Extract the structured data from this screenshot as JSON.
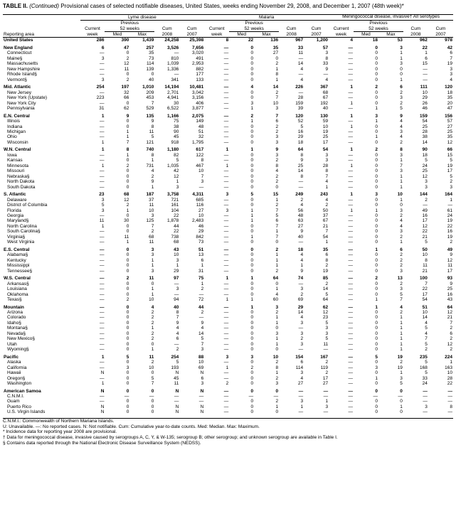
{
  "title_prefix": "TABLE II. ",
  "title_italic": "(Continued)",
  "title_rest": " Provisional cases of selected notifiable diseases, United States, weeks ending November 29, 2008, and December 1, 2007 (48th week)*",
  "groups": [
    {
      "label": "Lyme disease"
    },
    {
      "label": "Malaria"
    },
    {
      "label": "Meningococcal disease, invasive†\nAll serotypes"
    }
  ],
  "subheaders": {
    "previous": "Previous",
    "weeks": "52 weeks",
    "current": "Current",
    "week": "week",
    "med": "Med",
    "max": "Max",
    "cum": "Cum",
    "y2008": "2008",
    "y2007": "2007",
    "area": "Reporting area"
  },
  "sections": [
    {
      "header": [
        "United States",
        "286",
        "390",
        "1,439",
        "24,258",
        "25,398",
        "8",
        "22",
        "136",
        "967",
        "1,200",
        "4",
        "18",
        "53",
        "962",
        "978"
      ],
      "rows": []
    },
    {
      "header": [
        "New England",
        "6",
        "47",
        "257",
        "3,526",
        "7,656",
        "—",
        "0",
        "35",
        "33",
        "57",
        "—",
        "0",
        "3",
        "22",
        "42"
      ],
      "rows": [
        [
          "Connecticut",
          "—",
          "0",
          "35",
          "—",
          "3,020",
          "—",
          "0",
          "27",
          "11",
          "3",
          "—",
          "0",
          "1",
          "1",
          "6"
        ],
        [
          "Maine§",
          "3",
          "2",
          "73",
          "810",
          "491",
          "—",
          "0",
          "0",
          "—",
          "8",
          "—",
          "0",
          "1",
          "6",
          "7"
        ],
        [
          "Massachusetts",
          "—",
          "12",
          "114",
          "1,039",
          "2,953",
          "—",
          "0",
          "2",
          "14",
          "33",
          "—",
          "0",
          "3",
          "15",
          "19"
        ],
        [
          "New Hampshire",
          "—",
          "11",
          "139",
          "1,336",
          "882",
          "—",
          "0",
          "1",
          "4",
          "9",
          "—",
          "0",
          "0",
          "—",
          "3"
        ],
        [
          "Rhode Island§",
          "—",
          "0",
          "0",
          "—",
          "177",
          "—",
          "0",
          "8",
          "—",
          "—",
          "—",
          "0",
          "0",
          "—",
          "3"
        ],
        [
          "Vermont§",
          "3",
          "2",
          "40",
          "341",
          "133",
          "—",
          "0",
          "1",
          "4",
          "4",
          "—",
          "0",
          "1",
          "—",
          "4"
        ]
      ]
    },
    {
      "header": [
        "Mid. Atlantic",
        "254",
        "197",
        "1,010",
        "14,194",
        "10,481",
        "—",
        "4",
        "14",
        "226",
        "367",
        "1",
        "2",
        "6",
        "111",
        "120"
      ],
      "rows": [
        [
          "New Jersey",
          "—",
          "32",
          "209",
          "2,701",
          "3,042",
          "—",
          "0",
          "2",
          "—",
          "68",
          "—",
          "0",
          "2",
          "10",
          "18"
        ],
        [
          "New York (Upstate)",
          "223",
          "66",
          "453",
          "4,941",
          "3,156",
          "—",
          "0",
          "7",
          "28",
          "67",
          "—",
          "0",
          "3",
          "29",
          "35"
        ],
        [
          "New York City",
          "—",
          "0",
          "7",
          "30",
          "406",
          "—",
          "3",
          "10",
          "159",
          "192",
          "1",
          "0",
          "2",
          "26",
          "20"
        ],
        [
          "Pennsylvania",
          "31",
          "62",
          "529",
          "6,522",
          "3,877",
          "—",
          "1",
          "3",
          "39",
          "40",
          "—",
          "1",
          "5",
          "46",
          "47"
        ]
      ]
    },
    {
      "header": [
        "E.N. Central",
        "1",
        "9",
        "135",
        "1,166",
        "2,075",
        "—",
        "2",
        "7",
        "120",
        "130",
        "1",
        "3",
        "9",
        "159",
        "156"
      ],
      "rows": [
        [
          "Illinois",
          "—",
          "0",
          "9",
          "75",
          "149",
          "—",
          "1",
          "6",
          "52",
          "59",
          "—",
          "1",
          "4",
          "54",
          "57"
        ],
        [
          "Indiana",
          "—",
          "0",
          "8",
          "38",
          "48",
          "—",
          "0",
          "2",
          "5",
          "10",
          "1",
          "0",
          "4",
          "25",
          "27"
        ],
        [
          "Michigan",
          "—",
          "1",
          "11",
          "90",
          "51",
          "—",
          "0",
          "2",
          "16",
          "19",
          "—",
          "0",
          "3",
          "28",
          "25"
        ],
        [
          "Ohio",
          "—",
          "1",
          "5",
          "45",
          "32",
          "—",
          "0",
          "3",
          "29",
          "25",
          "—",
          "1",
          "4",
          "38",
          "35"
        ],
        [
          "Wisconsin",
          "1",
          "7",
          "121",
          "918",
          "1,795",
          "—",
          "0",
          "3",
          "18",
          "17",
          "—",
          "0",
          "2",
          "14",
          "12"
        ]
      ]
    },
    {
      "header": [
        "W.N. Central",
        "1",
        "8",
        "740",
        "1,180",
        "617",
        "1",
        "1",
        "9",
        "64",
        "54",
        "1",
        "2",
        "8",
        "90",
        "66"
      ],
      "rows": [
        [
          "Iowa",
          "—",
          "1",
          "8",
          "82",
          "122",
          "—",
          "0",
          "3",
          "8",
          "3",
          "—",
          "0",
          "3",
          "18",
          "15"
        ],
        [
          "Kansas",
          "—",
          "0",
          "1",
          "5",
          "8",
          "—",
          "0",
          "2",
          "9",
          "3",
          "—",
          "0",
          "1",
          "5",
          "5"
        ],
        [
          "Minnesota",
          "1",
          "2",
          "731",
          "1,035",
          "467",
          "1",
          "0",
          "8",
          "25",
          "28",
          "1",
          "0",
          "7",
          "24",
          "19"
        ],
        [
          "Missouri",
          "—",
          "0",
          "4",
          "42",
          "10",
          "—",
          "0",
          "4",
          "14",
          "8",
          "—",
          "0",
          "3",
          "25",
          "17"
        ],
        [
          "Nebraska§",
          "—",
          "0",
          "2",
          "12",
          "7",
          "—",
          "0",
          "2",
          "8",
          "7",
          "—",
          "0",
          "1",
          "12",
          "5"
        ],
        [
          "North Dakota",
          "—",
          "0",
          "9",
          "1",
          "3",
          "—",
          "0",
          "2",
          "—",
          "4",
          "—",
          "0",
          "1",
          "3",
          "2"
        ],
        [
          "South Dakota",
          "—",
          "0",
          "1",
          "3",
          "—",
          "—",
          "0",
          "0",
          "—",
          "1",
          "—",
          "0",
          "1",
          "3",
          "3"
        ]
      ]
    },
    {
      "header": [
        "S. Atlantic",
        "23",
        "68",
        "187",
        "3,758",
        "4,311",
        "3",
        "5",
        "15",
        "249",
        "243",
        "1",
        "3",
        "10",
        "144",
        "164"
      ],
      "rows": [
        [
          "Delaware",
          "3",
          "12",
          "37",
          "721",
          "685",
          "—",
          "0",
          "1",
          "2",
          "4",
          "—",
          "0",
          "1",
          "2",
          "1"
        ],
        [
          "District of Columbia",
          "5",
          "2",
          "11",
          "161",
          "116",
          "—",
          "0",
          "2",
          "4",
          "2",
          "—",
          "0",
          "0",
          "—",
          "—"
        ],
        [
          "Florida",
          "3",
          "1",
          "10",
          "104",
          "27",
          "3",
          "1",
          "7",
          "56",
          "50",
          "1",
          "1",
          "3",
          "49",
          "61"
        ],
        [
          "Georgia",
          "—",
          "0",
          "3",
          "22",
          "10",
          "—",
          "1",
          "5",
          "48",
          "37",
          "—",
          "0",
          "2",
          "16",
          "24"
        ],
        [
          "Maryland§",
          "11",
          "30",
          "125",
          "1,878",
          "2,483",
          "—",
          "1",
          "6",
          "63",
          "67",
          "—",
          "0",
          "4",
          "17",
          "19"
        ],
        [
          "North Carolina",
          "1",
          "0",
          "7",
          "44",
          "46",
          "—",
          "0",
          "7",
          "27",
          "21",
          "—",
          "0",
          "4",
          "12",
          "22"
        ],
        [
          "South Carolina§",
          "—",
          "0",
          "2",
          "22",
          "29",
          "—",
          "0",
          "1",
          "9",
          "7",
          "—",
          "0",
          "3",
          "22",
          "16"
        ],
        [
          "Virginia§",
          "—",
          "11",
          "68",
          "738",
          "842",
          "—",
          "1",
          "7",
          "40",
          "54",
          "—",
          "0",
          "2",
          "21",
          "19"
        ],
        [
          "West Virginia",
          "—",
          "1",
          "11",
          "68",
          "73",
          "—",
          "0",
          "0",
          "—",
          "1",
          "—",
          "0",
          "1",
          "5",
          "2"
        ]
      ]
    },
    {
      "header": [
        "E.S. Central",
        "—",
        "0",
        "3",
        "43",
        "51",
        "—",
        "0",
        "2",
        "18",
        "35",
        "—",
        "1",
        "6",
        "50",
        "49"
      ],
      "rows": [
        [
          "Alabama§",
          "—",
          "0",
          "3",
          "10",
          "13",
          "—",
          "0",
          "1",
          "4",
          "6",
          "—",
          "0",
          "2",
          "10",
          "9"
        ],
        [
          "Kentucky",
          "—",
          "0",
          "1",
          "3",
          "6",
          "—",
          "0",
          "1",
          "4",
          "8",
          "—",
          "0",
          "2",
          "8",
          "12"
        ],
        [
          "Mississippi",
          "—",
          "0",
          "1",
          "1",
          "1",
          "—",
          "0",
          "1",
          "1",
          "2",
          "—",
          "0",
          "2",
          "11",
          "11"
        ],
        [
          "Tennessee§",
          "—",
          "0",
          "3",
          "29",
          "31",
          "—",
          "0",
          "2",
          "9",
          "19",
          "—",
          "0",
          "3",
          "21",
          "17"
        ]
      ]
    },
    {
      "header": [
        "W.S. Central",
        "—",
        "2",
        "11",
        "97",
        "75",
        "1",
        "1",
        "64",
        "74",
        "85",
        "—",
        "2",
        "13",
        "100",
        "93"
      ],
      "rows": [
        [
          "Arkansas§",
          "—",
          "0",
          "0",
          "—",
          "1",
          "—",
          "0",
          "0",
          "—",
          "2",
          "—",
          "0",
          "2",
          "7",
          "9"
        ],
        [
          "Louisiana",
          "—",
          "0",
          "1",
          "3",
          "2",
          "—",
          "0",
          "1",
          "3",
          "14",
          "—",
          "0",
          "3",
          "22",
          "25"
        ],
        [
          "Oklahoma",
          "—",
          "0",
          "1",
          "—",
          "—",
          "—",
          "0",
          "4",
          "2",
          "5",
          "—",
          "0",
          "5",
          "17",
          "16"
        ],
        [
          "Texas§",
          "—",
          "2",
          "10",
          "94",
          "72",
          "1",
          "1",
          "60",
          "69",
          "64",
          "—",
          "1",
          "7",
          "54",
          "43"
        ]
      ]
    },
    {
      "header": [
        "Mountain",
        "—",
        "0",
        "4",
        "40",
        "44",
        "—",
        "1",
        "3",
        "29",
        "62",
        "—",
        "1",
        "4",
        "51",
        "64"
      ],
      "rows": [
        [
          "Arizona",
          "—",
          "0",
          "2",
          "8",
          "2",
          "—",
          "0",
          "2",
          "14",
          "12",
          "—",
          "0",
          "2",
          "10",
          "12"
        ],
        [
          "Colorado",
          "—",
          "0",
          "2",
          "7",
          "—",
          "—",
          "0",
          "1",
          "4",
          "23",
          "—",
          "0",
          "1",
          "14",
          "21"
        ],
        [
          "Idaho§",
          "—",
          "0",
          "2",
          "9",
          "9",
          "—",
          "0",
          "1",
          "3",
          "5",
          "—",
          "0",
          "1",
          "4",
          "7"
        ],
        [
          "Montana§",
          "—",
          "0",
          "1",
          "4",
          "4",
          "—",
          "0",
          "0",
          "—",
          "3",
          "—",
          "0",
          "1",
          "5",
          "2"
        ],
        [
          "Nevada§",
          "—",
          "0",
          "2",
          "4",
          "14",
          "—",
          "0",
          "3",
          "3",
          "3",
          "—",
          "0",
          "1",
          "4",
          "6"
        ],
        [
          "New Mexico§",
          "—",
          "0",
          "2",
          "6",
          "5",
          "—",
          "0",
          "1",
          "2",
          "5",
          "—",
          "0",
          "1",
          "7",
          "2"
        ],
        [
          "Utah",
          "—",
          "0",
          "0",
          "—",
          "7",
          "—",
          "0",
          "1",
          "3",
          "11",
          "—",
          "0",
          "1",
          "5",
          "12"
        ],
        [
          "Wyoming§",
          "—",
          "0",
          "1",
          "2",
          "3",
          "—",
          "0",
          "0",
          "—",
          "—",
          "—",
          "0",
          "1",
          "2",
          "2"
        ]
      ]
    },
    {
      "header": [
        "Pacific",
        "1",
        "5",
        "11",
        "254",
        "88",
        "3",
        "3",
        "10",
        "154",
        "167",
        "—",
        "5",
        "19",
        "235",
        "224"
      ],
      "rows": [
        [
          "Alaska",
          "—",
          "0",
          "2",
          "5",
          "10",
          "—",
          "0",
          "2",
          "6",
          "2",
          "—",
          "0",
          "2",
          "5",
          "1"
        ],
        [
          "California",
          "—",
          "3",
          "10",
          "193",
          "69",
          "1",
          "2",
          "8",
          "114",
          "119",
          "—",
          "3",
          "19",
          "168",
          "163"
        ],
        [
          "Hawaii",
          "N",
          "0",
          "0",
          "N",
          "N",
          "—",
          "0",
          "1",
          "3",
          "2",
          "—",
          "0",
          "1",
          "5",
          "10"
        ],
        [
          "Oregon§",
          "—",
          "0",
          "5",
          "45",
          "6",
          "—",
          "0",
          "2",
          "4",
          "17",
          "—",
          "1",
          "3",
          "33",
          "28"
        ],
        [
          "Washington",
          "1",
          "0",
          "7",
          "11",
          "3",
          "2",
          "0",
          "3",
          "27",
          "27",
          "—",
          "0",
          "5",
          "24",
          "22"
        ]
      ]
    },
    {
      "header": [
        "American Samoa",
        "N",
        "0",
        "0",
        "N",
        "N",
        "—",
        "0",
        "0",
        "—",
        "—",
        "—",
        "0",
        "0",
        "—",
        "—"
      ],
      "rows": [
        [
          "C.N.M.I.",
          "—",
          "—",
          "—",
          "—",
          "—",
          "—",
          "—",
          "—",
          "—",
          "—",
          "—",
          "—",
          "—",
          "—",
          "—"
        ],
        [
          "Guam",
          "—",
          "0",
          "0",
          "—",
          "—",
          "—",
          "0",
          "2",
          "3",
          "1",
          "—",
          "0",
          "0",
          "—",
          "—"
        ],
        [
          "Puerto Rico",
          "N",
          "0",
          "0",
          "N",
          "N",
          "—",
          "0",
          "1",
          "1",
          "3",
          "—",
          "0",
          "1",
          "3",
          "8"
        ],
        [
          "U.S. Virgin Islands",
          "N",
          "0",
          "0",
          "N",
          "N",
          "—",
          "0",
          "0",
          "—",
          "—",
          "—",
          "0",
          "0",
          "—",
          "—"
        ]
      ]
    }
  ],
  "footnotes": [
    "C.N.M.I.: Commonwealth of Northern Mariana Islands.",
    "U: Unavailable.   —: No reported cases.   N: Not notifiable.   Cum: Cumulative year-to-date counts.   Med: Median.   Max: Maximum.",
    "* Incidence data for reporting year 2008 are provisional.",
    "† Data for meningococcal disease, invasive caused by serogroups A, C, Y, & W-135; serogroup B; other serogroup; and unknown serogroup are available in Table I.",
    "§ Contains data reported through the National Electronic Disease Surveillance System (NEDSS)."
  ]
}
